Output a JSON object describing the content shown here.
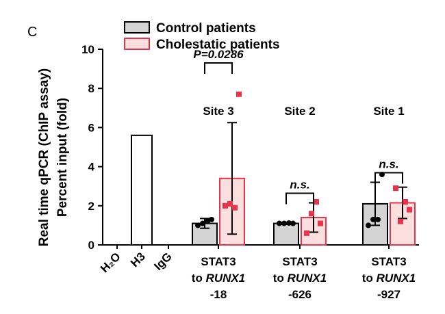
{
  "panel_label": "C",
  "colors": {
    "control_fill": "#d4d4d4",
    "control_stroke": "#000000",
    "cholestatic_fill": "#fbdede",
    "cholestatic_stroke": "#e8334a",
    "cholestatic_point": "#e8334a",
    "open_bar_fill": "#ffffff"
  },
  "chart_data": {
    "type": "bar",
    "ylabel_line1": "Real time qPCR (ChIP assay)",
    "ylabel_line2": "Percent input (fold)",
    "ylim": [
      0,
      10
    ],
    "yticks": [
      0,
      2,
      4,
      6,
      8,
      10
    ],
    "legend": {
      "placement": "top",
      "entries": [
        {
          "name": "Control patients",
          "color_key": "control"
        },
        {
          "name": "Cholestatic patients",
          "color_key": "cholestatic"
        }
      ]
    },
    "controls": [
      {
        "label": "H₂O",
        "value": 0
      },
      {
        "label": "H3",
        "value": 5.6
      },
      {
        "label": "IgG",
        "value": 0
      }
    ],
    "groups": [
      {
        "site": "Site 3",
        "label_line1": "STAT3",
        "label_line2_prefix": "to ",
        "label_line2_gene": "RUNX1",
        "label_line3": "-18",
        "significance": "P=0.0286",
        "control": {
          "mean": 1.1,
          "error": 0.25,
          "points": [
            1.0,
            1.1,
            1.2,
            1.3
          ]
        },
        "cholestatic": {
          "mean": 3.4,
          "error": 2.85,
          "points": [
            2.0,
            2.1,
            1.9,
            7.7
          ]
        }
      },
      {
        "site": "Site 2",
        "label_line1": "STAT3",
        "label_line2_prefix": "to ",
        "label_line2_gene": "RUNX1",
        "label_line3": "-626",
        "significance": "n.s.",
        "control": {
          "mean": 1.1,
          "error": 0.05,
          "points": [
            1.1,
            1.1,
            1.12,
            1.1
          ]
        },
        "cholestatic": {
          "mean": 1.4,
          "error": 0.75,
          "points": [
            0.6,
            1.6,
            2.2,
            1.1
          ]
        }
      },
      {
        "site": "Site 1",
        "label_line1": "STAT3",
        "label_line2_prefix": "to ",
        "label_line2_gene": "RUNX1",
        "label_line3": "-927",
        "significance": "n.s.",
        "control": {
          "mean": 2.1,
          "error": 1.1,
          "points": [
            1.0,
            1.3,
            1.3,
            3.6
          ]
        },
        "cholestatic": {
          "mean": 2.15,
          "error": 0.8,
          "points": [
            2.9,
            1.2,
            2.2,
            1.8
          ]
        }
      }
    ]
  }
}
